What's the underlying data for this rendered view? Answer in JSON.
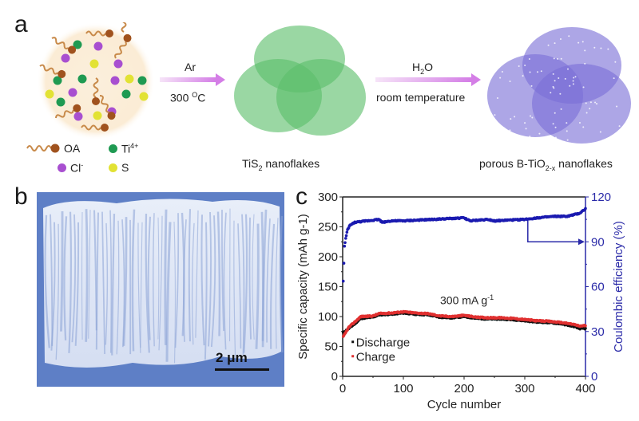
{
  "panel_a": {
    "label": "a",
    "legend": [
      {
        "name": "OA",
        "color": "#a0521e"
      },
      {
        "name": "Ti",
        "sup": "4+",
        "color": "#1f9a52"
      },
      {
        "name": "Cl",
        "sup": "-",
        "color": "#a84fd0"
      },
      {
        "name": "S",
        "color": "#e2e234"
      }
    ],
    "step1": {
      "top": "Ar",
      "bottom_value": "300 ",
      "bottom_unit_sup": "O",
      "bottom_unit": "C"
    },
    "step2": {
      "top_main": "H",
      "top_sub": "2",
      "top_end": "O",
      "bottom": "room temperature"
    },
    "product1": {
      "main": "TiS",
      "sub": "2",
      "rest": " nanoflakes",
      "color": "#5cbf6a"
    },
    "product2": {
      "main": "porous B-TiO",
      "sub": "2-x",
      "rest": " nanoflakes",
      "color": "#7b6fd6"
    },
    "arrow_color": "#d98be8"
  },
  "panel_b": {
    "label": "b",
    "scale_bar": "2 μm"
  },
  "panel_c": {
    "label": "c",
    "annotation": "300 mA g",
    "annotation_sup": "-1"
  },
  "chart_data": {
    "type": "scatter",
    "title": "",
    "xlabel": "Cycle number",
    "ylabel": "Specific capacity (mAh g-1)",
    "y2label": "Coulombic efficiency (%)",
    "xlim": [
      0,
      400
    ],
    "ylim": [
      0,
      300
    ],
    "y2lim": [
      0,
      120
    ],
    "xticks": [
      0,
      100,
      200,
      300,
      400
    ],
    "xtick_labels": [
      "0",
      "100",
      "200",
      "300",
      "400"
    ],
    "yticks": [
      0,
      50,
      100,
      150,
      200,
      250,
      300
    ],
    "y2ticks": [
      0,
      30,
      60,
      90,
      120
    ],
    "annotation": "300 mA g-1",
    "legend": [
      "Discharge",
      "Charge"
    ],
    "legend_position": "lower-left",
    "series": [
      {
        "name": "Discharge",
        "axis": "left",
        "color": "#111111",
        "x": [
          1,
          10,
          20,
          30,
          50,
          60,
          80,
          100,
          120,
          140,
          160,
          180,
          200,
          220,
          240,
          260,
          280,
          300,
          320,
          340,
          360,
          380,
          390,
          400
        ],
        "y": [
          73,
          80,
          88,
          97,
          99,
          103,
          104,
          106,
          104,
          103,
          99,
          98,
          100,
          97,
          96,
          96,
          95,
          93,
          91,
          90,
          88,
          84,
          80,
          80
        ]
      },
      {
        "name": "Charge",
        "axis": "left",
        "color": "#e03030",
        "x": [
          1,
          10,
          20,
          30,
          50,
          60,
          80,
          100,
          120,
          140,
          160,
          180,
          200,
          220,
          240,
          260,
          280,
          300,
          320,
          340,
          360,
          380,
          390,
          400
        ],
        "y": [
          66,
          82,
          91,
          100,
          101,
          105,
          106,
          108,
          106,
          105,
          101,
          100,
          102,
          99,
          98,
          98,
          97,
          95,
          93,
          92,
          90,
          87,
          84,
          85
        ]
      },
      {
        "name": "Coulombic efficiency",
        "axis": "right",
        "color": "#1a1ab0",
        "x": [
          1,
          3,
          5,
          8,
          12,
          20,
          40,
          60,
          65,
          80,
          100,
          150,
          200,
          210,
          240,
          250,
          300,
          320,
          350,
          370,
          390,
          400
        ],
        "y": [
          64,
          87,
          92,
          98,
          101,
          103,
          104,
          105,
          103,
          104,
          104,
          105,
          106,
          104,
          105,
          104,
          105,
          106,
          107,
          107,
          109,
          112
        ]
      }
    ]
  }
}
